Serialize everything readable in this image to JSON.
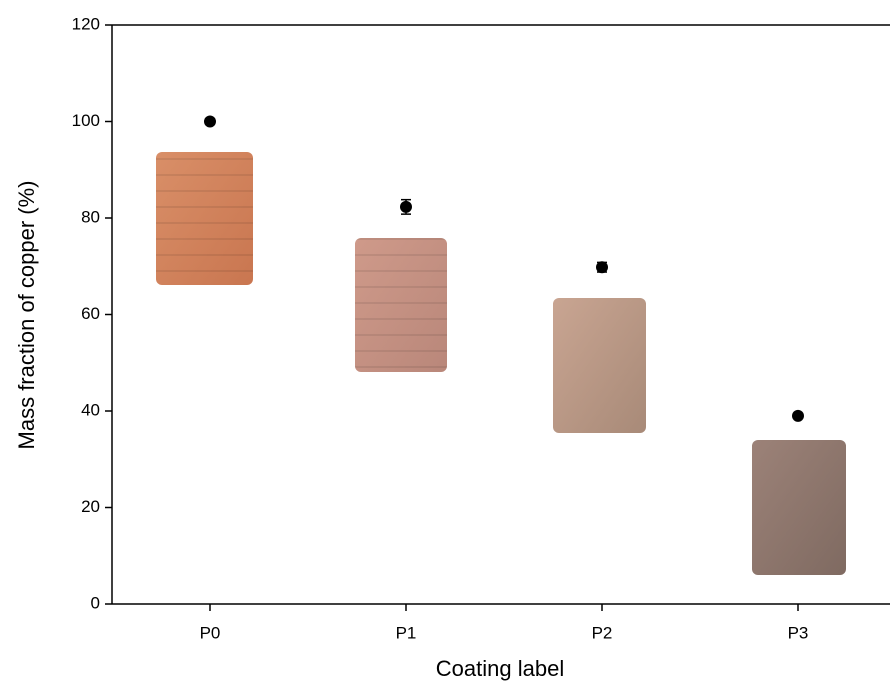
{
  "chart_data": {
    "type": "scatter",
    "x_label": "Coating label",
    "y_label": "Mass fraction of copper (%)",
    "categories": [
      "P0",
      "P1",
      "P2",
      "P3"
    ],
    "values": [
      100,
      82.3,
      69.8,
      39
    ],
    "errors": [
      0.5,
      1.5,
      1,
      0.5
    ],
    "color": "#000000",
    "ylim": [
      0,
      120
    ],
    "yticks": [
      0,
      20,
      40,
      60,
      80,
      100,
      120
    ],
    "grid": false
  }
}
